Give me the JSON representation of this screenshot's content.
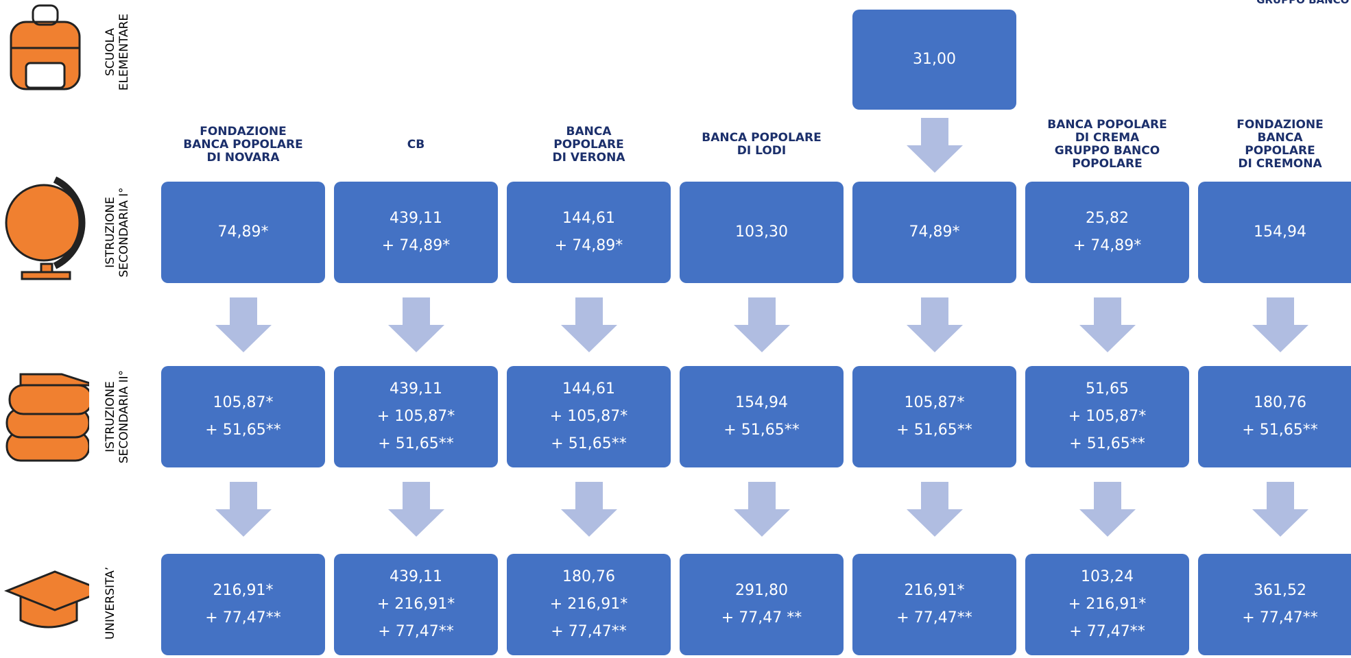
{
  "header": {
    "corner": "GRUPPO BANCO BPM"
  },
  "levels": [
    {
      "label": [
        "SCUOLA",
        "ELEMENTARE"
      ]
    },
    {
      "label": [
        "ISTRUZIONE",
        "SECONDARIA I°"
      ]
    },
    {
      "label": [
        "ISTRUZIONE",
        "SECONDARIA II°"
      ]
    },
    {
      "label": [
        "UNIVERSITA’"
      ]
    }
  ],
  "columns": [
    {
      "logo": [
        "FONDAZIONE",
        "BANCA POPOLARE",
        "DI NOVARA"
      ],
      "rows": [
        [
          "74,89*"
        ],
        [
          "105,87*",
          "+ 51,65**"
        ],
        [
          "216,91*",
          "+ 77,47**"
        ]
      ]
    },
    {
      "logo": [
        "CB"
      ],
      "rows": [
        [
          "439,11",
          "+ 74,89*"
        ],
        [
          "439,11",
          "+ 105,87*",
          "+ 51,65**"
        ],
        [
          "439,11",
          "+ 216,91*",
          "+ 77,47**"
        ]
      ]
    },
    {
      "logo": [
        "BANCA",
        "POPOLARE",
        "DI VERONA"
      ],
      "rows": [
        [
          "144,61",
          "+ 74,89*"
        ],
        [
          "144,61",
          "+ 105,87*",
          "+ 51,65**"
        ],
        [
          "180,76",
          "+ 216,91*",
          "+ 77,47**"
        ]
      ]
    },
    {
      "logo": [
        "BANCA POPOLARE",
        "DI LODI"
      ],
      "rows": [
        [
          "103,30"
        ],
        [
          "154,94",
          "+ 51,65**"
        ],
        [
          "291,80",
          "+ 77,47 **"
        ]
      ]
    },
    {
      "top": [
        "31,00"
      ],
      "rows": [
        [
          "74,89*"
        ],
        [
          "105,87*",
          "+ 51,65**"
        ],
        [
          "216,91*",
          "+ 77,47**"
        ]
      ]
    },
    {
      "logo": [
        "BANCA POPOLARE",
        "DI CREMA",
        "GRUPPO BANCO POPOLARE"
      ],
      "rows": [
        [
          "25,82",
          "+ 74,89*"
        ],
        [
          "51,65",
          "+ 105,87*",
          "+ 51,65**"
        ],
        [
          "103,24",
          "+ 216,91*",
          "+ 77,47**"
        ]
      ]
    },
    {
      "logo": [
        "FONDAZIONE",
        "BANCA",
        "POPOLARE",
        "DI CREMONA"
      ],
      "rows": [
        [
          "154,94"
        ],
        [
          "180,76",
          "+ 51,65**"
        ],
        [
          "361,52",
          "+ 77,47**"
        ]
      ]
    }
  ]
}
